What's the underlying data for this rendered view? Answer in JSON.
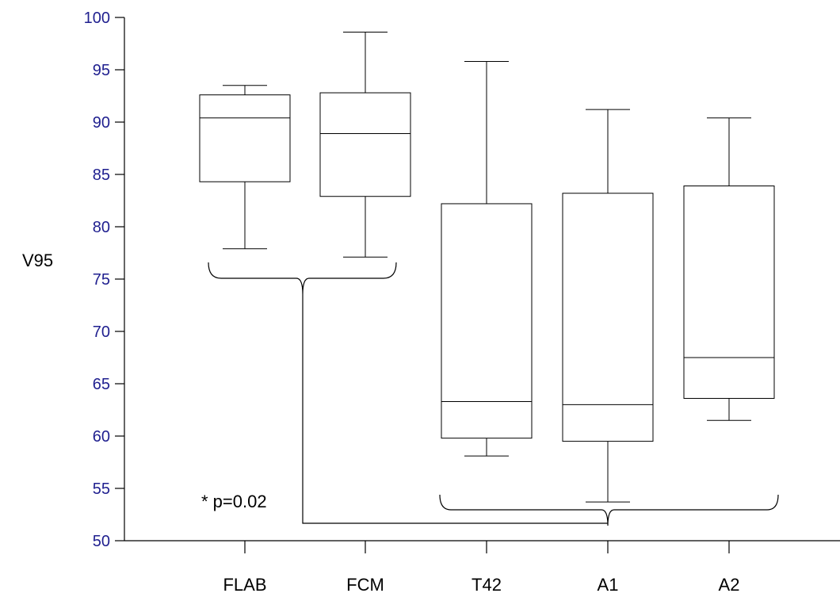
{
  "chart_data": {
    "type": "box",
    "ylabel": "V95",
    "xlabel": "",
    "ylim": [
      50,
      100
    ],
    "yticks": [
      50,
      55,
      60,
      65,
      70,
      75,
      80,
      85,
      90,
      95,
      100
    ],
    "grid": false,
    "categories": [
      "FLAB",
      "FCM",
      "T42",
      "A1",
      "A2"
    ],
    "boxes": [
      {
        "category": "FLAB",
        "min": 77.9,
        "q1": 84.3,
        "median": 90.4,
        "q3": 92.6,
        "max": 93.5
      },
      {
        "category": "FCM",
        "min": 77.1,
        "q1": 82.9,
        "median": 88.9,
        "q3": 92.8,
        "max": 98.6
      },
      {
        "category": "T42",
        "min": 58.1,
        "q1": 59.8,
        "median": 63.3,
        "q3": 82.2,
        "max": 95.8
      },
      {
        "category": "A1",
        "min": 53.7,
        "q1": 59.5,
        "median": 63.0,
        "q3": 83.2,
        "max": 91.2
      },
      {
        "category": "A2",
        "min": 61.5,
        "q1": 63.6,
        "median": 67.5,
        "q3": 83.9,
        "max": 90.4
      }
    ],
    "annotations": [
      {
        "text": "* p=0.02",
        "groups": [
          [
            "FLAB",
            "FCM"
          ],
          [
            "T42",
            "A1",
            "A2"
          ]
        ]
      }
    ]
  }
}
